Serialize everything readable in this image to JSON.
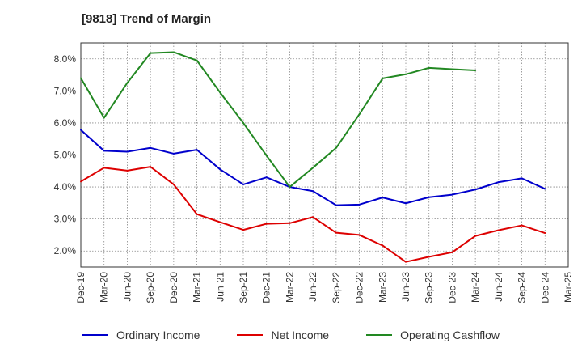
{
  "chart_data": {
    "type": "line",
    "title": "[9818]  Trend of Margin",
    "xlabel": "",
    "ylabel": "",
    "categories": [
      "Dec-19",
      "Mar-20",
      "Jun-20",
      "Sep-20",
      "Dec-20",
      "Mar-21",
      "Jun-21",
      "Sep-21",
      "Dec-21",
      "Mar-22",
      "Jun-22",
      "Sep-22",
      "Dec-22",
      "Mar-23",
      "Jun-23",
      "Sep-23",
      "Dec-23",
      "Mar-24",
      "Jun-24",
      "Sep-24",
      "Dec-24",
      "Mar-25"
    ],
    "ylim": [
      1.5,
      8.5
    ],
    "yticks": [
      2.0,
      3.0,
      4.0,
      5.0,
      6.0,
      7.0,
      8.0
    ],
    "ytick_labels": [
      "2.0%",
      "3.0%",
      "4.0%",
      "5.0%",
      "6.0%",
      "7.0%",
      "8.0%"
    ],
    "grid": true,
    "legend_position": "bottom",
    "series": [
      {
        "name": "Ordinary Income",
        "color": "#0000cc",
        "values": [
          5.78,
          5.13,
          5.1,
          5.22,
          5.04,
          5.16,
          4.55,
          4.08,
          4.3,
          4.0,
          3.87,
          3.43,
          3.45,
          3.67,
          3.49,
          3.68,
          3.76,
          3.92,
          4.15,
          4.27,
          3.94,
          null
        ]
      },
      {
        "name": "Net Income",
        "color": "#dd0000",
        "values": [
          4.17,
          4.6,
          4.51,
          4.63,
          4.08,
          3.15,
          2.9,
          2.66,
          2.85,
          2.87,
          3.06,
          2.57,
          2.5,
          2.17,
          1.66,
          1.82,
          1.96,
          2.47,
          2.65,
          2.8,
          2.56,
          null
        ]
      },
      {
        "name": "Operating Cashflow",
        "color": "#228822",
        "values": [
          7.4,
          6.16,
          7.25,
          8.18,
          8.21,
          7.95,
          6.95,
          6.0,
          4.98,
          4.0,
          4.6,
          5.22,
          6.27,
          7.39,
          7.52,
          7.72,
          7.68,
          7.64,
          null,
          null,
          null,
          null
        ]
      }
    ]
  }
}
